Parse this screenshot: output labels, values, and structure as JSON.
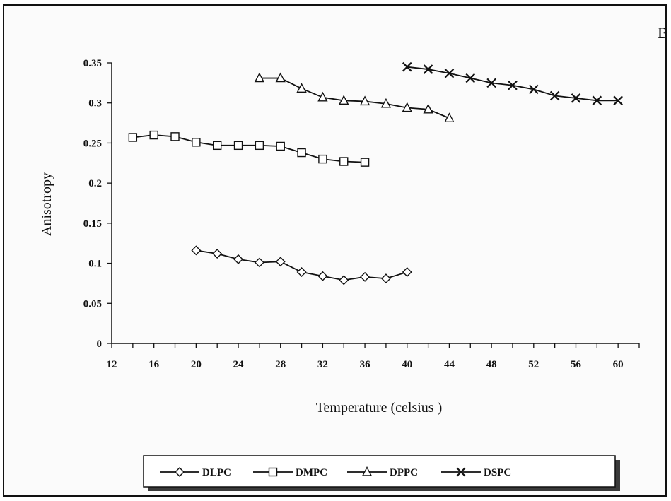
{
  "chart_data": {
    "type": "line",
    "panel_label": "B",
    "title": "",
    "xlabel": "Temperature (celsius )",
    "ylabel": "Anisotropy",
    "xlim": [
      12,
      62
    ],
    "ylim": [
      0,
      0.35
    ],
    "x_ticks": [
      12,
      16,
      20,
      24,
      28,
      32,
      36,
      40,
      44,
      48,
      52,
      56,
      60
    ],
    "x_tick_labels": [
      "12",
      "16",
      "20",
      "24",
      "28",
      "32",
      "36",
      "40",
      "44",
      "48",
      "52",
      "56",
      "60"
    ],
    "y_ticks": [
      0,
      0.05,
      0.1,
      0.15,
      0.2,
      0.25,
      0.3,
      0.35
    ],
    "y_tick_labels": [
      "0",
      "0.05",
      "0.1",
      "0.15",
      "0.2",
      "0.25",
      "0.3",
      "0.35"
    ],
    "grid": false,
    "legend_position": "bottom",
    "series": [
      {
        "name": "DLPC",
        "marker": "diamond",
        "color": "#111111",
        "x": [
          20,
          22,
          24,
          26,
          28,
          30,
          32,
          34,
          36,
          38,
          40
        ],
        "y": [
          0.116,
          0.112,
          0.105,
          0.101,
          0.102,
          0.089,
          0.084,
          0.079,
          0.083,
          0.081,
          0.089
        ]
      },
      {
        "name": "DMPC",
        "marker": "square",
        "color": "#111111",
        "x": [
          14,
          16,
          18,
          20,
          22,
          24,
          26,
          28,
          30,
          32,
          34,
          36
        ],
        "y": [
          0.257,
          0.26,
          0.258,
          0.251,
          0.247,
          0.247,
          0.247,
          0.246,
          0.238,
          0.23,
          0.227,
          0.226
        ]
      },
      {
        "name": "DPPC",
        "marker": "triangle",
        "color": "#111111",
        "x": [
          26,
          28,
          30,
          32,
          34,
          36,
          38,
          40,
          42,
          44
        ],
        "y": [
          0.331,
          0.331,
          0.318,
          0.307,
          0.303,
          0.302,
          0.299,
          0.294,
          0.292,
          0.281
        ]
      },
      {
        "name": "DSPC",
        "marker": "x",
        "color": "#111111",
        "x": [
          40,
          42,
          44,
          46,
          48,
          50,
          52,
          54,
          56,
          58,
          60
        ],
        "y": [
          0.345,
          0.342,
          0.337,
          0.331,
          0.325,
          0.322,
          0.317,
          0.309,
          0.306,
          0.303,
          0.303
        ]
      }
    ]
  }
}
